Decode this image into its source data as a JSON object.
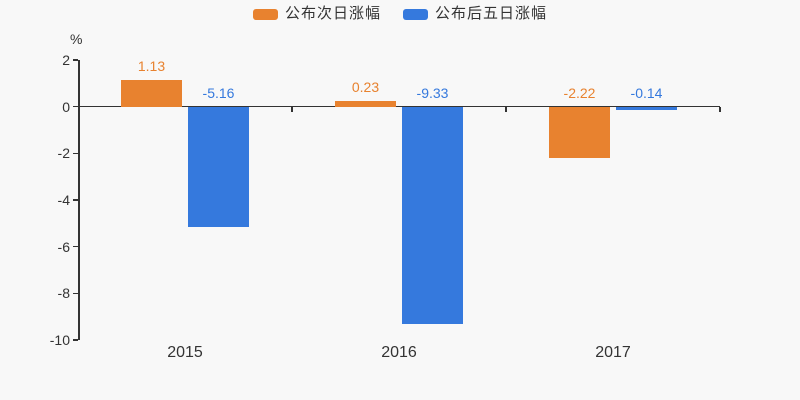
{
  "page": {
    "background": "#f8f8f8"
  },
  "chart_data": {
    "type": "bar",
    "unit_label": "%",
    "categories": [
      "2015",
      "2016",
      "2017"
    ],
    "series": [
      {
        "name": "公布次日涨幅",
        "color": "#e8822f",
        "values": [
          1.13,
          0.23,
          -2.22
        ],
        "labels": [
          "1.13",
          "0.23",
          "-2.22"
        ]
      },
      {
        "name": "公布后五日涨幅",
        "color": "#3579dd",
        "values": [
          -5.16,
          -9.33,
          -0.14
        ],
        "labels": [
          "-5.16",
          "-9.33",
          "-0.14"
        ]
      }
    ],
    "ylim": [
      -10,
      2
    ],
    "yticks": [
      2,
      0,
      -2,
      -4,
      -6,
      -8,
      -10
    ],
    "legend_position": "top",
    "grid": false,
    "axis_color": "#333333",
    "text_color": "#333333"
  }
}
